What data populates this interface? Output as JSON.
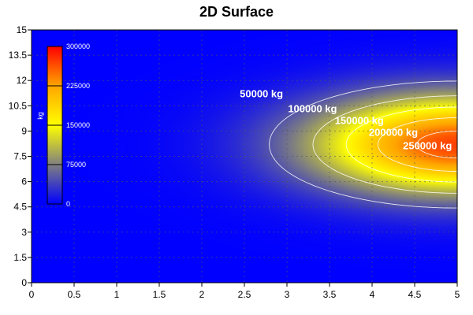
{
  "chart_data": {
    "type": "heatmap",
    "title": "2D Surface",
    "xlim": [
      0,
      5
    ],
    "ylim": [
      0,
      15
    ],
    "x_ticks": [
      "0",
      "0.5",
      "1",
      "1.5",
      "2",
      "2.5",
      "3",
      "3.5",
      "4",
      "4.5",
      "5"
    ],
    "y_ticks": [
      "0",
      "1.5",
      "3",
      "4.5",
      "6",
      "7.5",
      "9",
      "10.5",
      "12",
      "13.5",
      "15"
    ],
    "x_tick_values": [
      0,
      0.5,
      1,
      1.5,
      2,
      2.5,
      3,
      3.5,
      4,
      4.5,
      5
    ],
    "y_tick_values": [
      0,
      1.5,
      3,
      4.5,
      6,
      7.5,
      9,
      10.5,
      12,
      13.5,
      15
    ],
    "grid": true,
    "colorbar": {
      "placement": "top-left",
      "unit": "kg",
      "range": [
        0,
        300000
      ],
      "ticks": [
        "300000",
        "225000",
        "150000",
        "75000",
        "0"
      ],
      "tick_values": [
        300000,
        225000,
        150000,
        75000,
        0
      ],
      "colors": [
        "#0000ff",
        "#808080",
        "#ffff00",
        "#ffa500",
        "#ff0000"
      ]
    },
    "contours": [
      {
        "label": "50000 kg",
        "value": 50000,
        "label_at": [
          2.7,
          11.2
        ]
      },
      {
        "label": "100000 kg",
        "value": 100000,
        "label_at": [
          3.3,
          10.3
        ]
      },
      {
        "label": "150000 kg",
        "value": 150000,
        "label_at": [
          3.85,
          9.6
        ]
      },
      {
        "label": "200000 kg",
        "value": 200000,
        "label_at": [
          4.25,
          8.9
        ]
      },
      {
        "label": "250000 kg",
        "value": 250000,
        "label_at": [
          4.65,
          8.1
        ]
      }
    ],
    "peak": {
      "x": 5,
      "y": 8.2,
      "value": 270000
    }
  }
}
